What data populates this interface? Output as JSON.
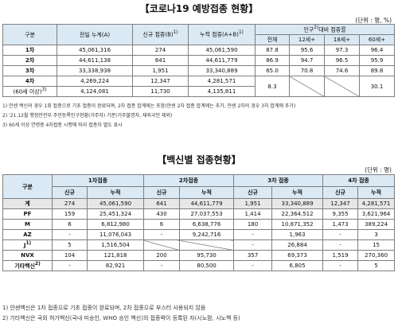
{
  "title1": "【코로나19 예방접종 현황】",
  "unit1": "(단위 : 명, %)",
  "t1_headers": {
    "gubun": "구분",
    "cum": "전일 누계(A)",
    "new": "신규 접종(B)",
    "new_sup": "1)",
    "total": "누적 접종(A+B)",
    "total_sup": "1)",
    "ratio": "인구",
    "ratio_sup": "2)",
    "ratio_rest": "대비 접종률",
    "all": "전체",
    "a12": "12세+",
    "a18": "18세+",
    "a60": "60세+"
  },
  "t1_rows": [
    {
      "label": "1차",
      "cum": "45,061,316",
      "new": "274",
      "total": "45,061,590",
      "all": "87.8",
      "a12": "95.6",
      "a18": "97.3",
      "a60": "96.4"
    },
    {
      "label": "2차",
      "cum": "44,611,138",
      "new": "641",
      "total": "44,611,779",
      "all": "86.9",
      "a12": "94.7",
      "a18": "96.5",
      "a60": "95.9"
    },
    {
      "label": "3차",
      "cum": "33,338,938",
      "new": "1,951",
      "total": "33,340,889",
      "all": "65.0",
      "a12": "70.8",
      "a18": "74.6",
      "a60": "89.8"
    },
    {
      "label": "4차",
      "cum": "4,269,224",
      "new": "12,347",
      "total": "4,281,571",
      "all": "8.3",
      "a12": "",
      "a18": "",
      "a60": "30.1"
    },
    {
      "label": "(60세 이상)",
      "label_sup": "3)",
      "cum": "4,124,081",
      "new": "11,730",
      "total": "4,135,811"
    }
  ],
  "t1_notes": [
    "1) 안센 백신의 경우 1회 접종으로 기초 접종이 완료되며, 2차 접종 합계에는 포함(얀센 2차 접종 합계에는 추가, 얀센 2차의 경우 3차 합계에 추가)",
    "2) '21.12월 행정안전부 주민등록인구현황(거주자) 기준(거주불명자, 재외국민 제외)",
    "3) 60세 이상 연령층 4차접종 시행에 따라 접종자 별도 표시"
  ],
  "title2": "【백신별 접종현황】",
  "unit2": "(단위 : 명)",
  "t2_headers": {
    "gubun": "구분",
    "d1": "1차접종",
    "d2": "2차접종",
    "d3": "3차 접종",
    "d4": "4차 접종",
    "new": "신규",
    "cum": "누적"
  },
  "t2_rows": [
    {
      "label": "계",
      "v": [
        "274",
        "45,061,590",
        "641",
        "44,611,779",
        "1,951",
        "33,340,889",
        "12,347",
        "4,281,571"
      ]
    },
    {
      "label": "PF",
      "v": [
        "159",
        "25,451,324",
        "430",
        "27,037,553",
        "1,414",
        "22,364,512",
        "9,355",
        "3,621,964"
      ]
    },
    {
      "label": "M",
      "v": [
        "6",
        "6,812,980",
        "6",
        "6,638,776",
        "180",
        "10,871,352",
        "1,473",
        "389,224"
      ]
    },
    {
      "label": "AZ",
      "v": [
        "-",
        "11,076,043",
        "-",
        "9,242,716",
        "-",
        "1,963",
        "-",
        "3"
      ]
    },
    {
      "label": "J",
      "label_sup": "1)",
      "v": [
        "5",
        "1,516,504",
        "",
        "",
        "-",
        "26,884",
        "-",
        "15"
      ]
    },
    {
      "label": "NVX",
      "v": [
        "104",
        "121,818",
        "200",
        "95,730",
        "357",
        "69,373",
        "1,519",
        "270,360"
      ]
    },
    {
      "label": "기타백신",
      "label_sup": "2)",
      "v": [
        "-",
        "82,921",
        "-",
        "80,500",
        "-",
        "6,805",
        "-",
        "5"
      ]
    }
  ],
  "t2_notes": [
    "1) 얀센백신은 1차 접종으로 기초 접종이 완료되며, 2차 접종으로 부스터 사용되지 않음",
    "2) 기타백신은 국외 허가백신(국내 미승인, WHO 승인 백신)의 접종력이 등록된 자(시노팜, 시노백 등)"
  ]
}
